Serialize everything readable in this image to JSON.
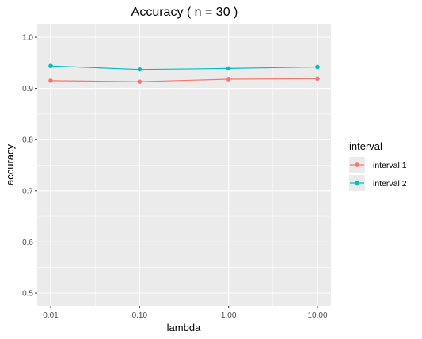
{
  "chart_data": {
    "type": "line",
    "title": "Accuracy ( n =  30 )",
    "xlabel": "lambda",
    "ylabel": "accuracy",
    "x_scale": "log10",
    "x_ticks": [
      0.01,
      0.1,
      1,
      10
    ],
    "x_tick_labels": [
      "0.01",
      "0.10",
      "1.00",
      "10.00"
    ],
    "ylim": [
      0.5,
      1.0
    ],
    "y_ticks": [
      0.5,
      0.6,
      0.7,
      0.8,
      0.9,
      1.0
    ],
    "y_tick_labels": [
      "0.5",
      "0.6",
      "0.7",
      "0.8",
      "0.9",
      "1.0"
    ],
    "grid": true,
    "legend_title": "interval",
    "legend_position": "right",
    "x": [
      0.01,
      0.1,
      1,
      10
    ],
    "series": [
      {
        "name": "interval 1",
        "color": "#F8766D",
        "values": [
          0.915,
          0.913,
          0.918,
          0.919
        ]
      },
      {
        "name": "interval 2",
        "color": "#00BFC4",
        "values": [
          0.944,
          0.937,
          0.939,
          0.942
        ]
      }
    ]
  }
}
